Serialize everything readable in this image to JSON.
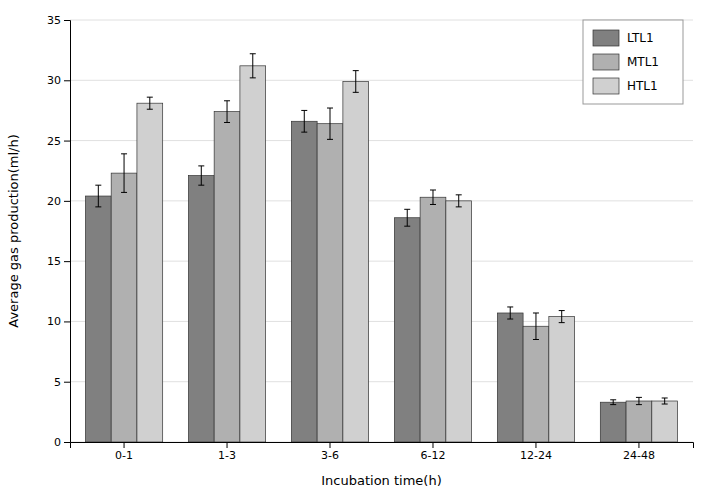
{
  "chart_data": {
    "type": "bar",
    "xlabel": "Incubation time(h)",
    "ylabel": "Average gas production(ml/h)",
    "categories": [
      "0-1",
      "1-3",
      "3-6",
      "6-12",
      "12-24",
      "24-48"
    ],
    "series": [
      {
        "name": "LTL1",
        "color": "#808080",
        "values": [
          20.4,
          22.1,
          26.6,
          18.6,
          10.7,
          3.3
        ],
        "errors": [
          0.9,
          0.8,
          0.9,
          0.7,
          0.5,
          0.2
        ]
      },
      {
        "name": "MTL1",
        "color": "#b0b0b0",
        "values": [
          22.3,
          27.4,
          26.4,
          20.3,
          9.6,
          3.4
        ],
        "errors": [
          1.6,
          0.9,
          1.3,
          0.6,
          1.1,
          0.3
        ]
      },
      {
        "name": "HTL1",
        "color": "#d0d0d0",
        "values": [
          28.1,
          31.2,
          29.9,
          20.0,
          10.4,
          3.4
        ],
        "errors": [
          0.5,
          1.0,
          0.9,
          0.5,
          0.5,
          0.25
        ]
      }
    ],
    "ylim": [
      0,
      35
    ],
    "yticks": [
      0,
      5,
      10,
      15,
      20,
      25,
      30,
      35
    ],
    "grid": true,
    "legend": "upper right"
  }
}
